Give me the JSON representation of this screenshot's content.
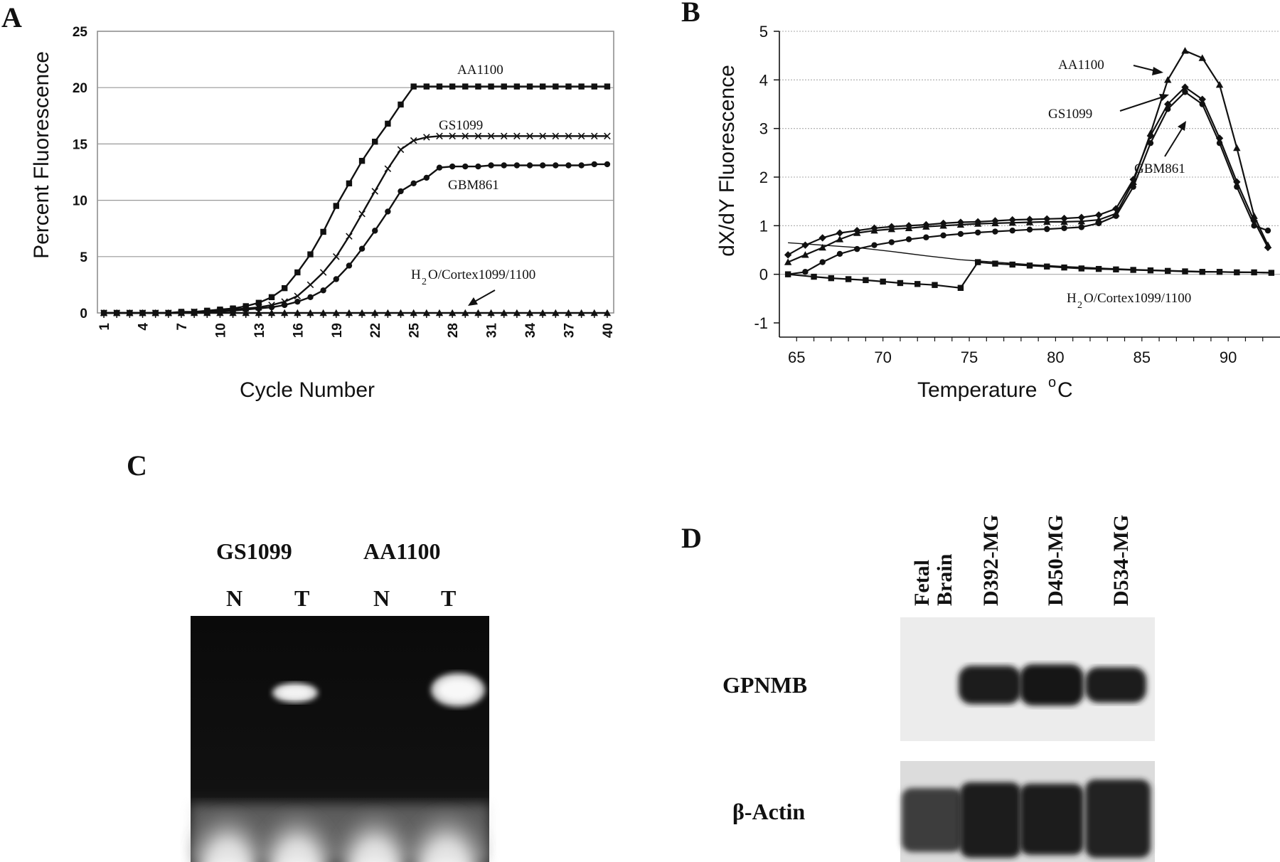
{
  "panels": {
    "A": "A",
    "B": "B",
    "C": "C",
    "D": "D"
  },
  "chart_data": [
    {
      "panel": "A",
      "type": "line",
      "xlabel": "Cycle Number",
      "ylabel": "Percent Fluorescence",
      "x": [
        1,
        2,
        3,
        4,
        5,
        6,
        7,
        8,
        9,
        10,
        11,
        12,
        13,
        14,
        15,
        16,
        17,
        18,
        19,
        20,
        21,
        22,
        23,
        24,
        25,
        26,
        27,
        28,
        29,
        30,
        31,
        32,
        33,
        34,
        35,
        36,
        37,
        38,
        39,
        40
      ],
      "xticks": [
        1,
        4,
        7,
        10,
        13,
        16,
        19,
        22,
        25,
        28,
        31,
        34,
        37,
        40
      ],
      "ylim": [
        0,
        25
      ],
      "yticks": [
        0,
        5,
        10,
        15,
        20,
        25
      ],
      "grid": true,
      "series": [
        {
          "name": "AA1100",
          "marker": "square",
          "values": [
            0,
            0,
            0,
            0,
            0,
            0,
            0.1,
            0.1,
            0.2,
            0.3,
            0.4,
            0.6,
            0.9,
            1.4,
            2.2,
            3.6,
            5.2,
            7.2,
            9.5,
            11.5,
            13.5,
            15.2,
            16.8,
            18.5,
            20.1,
            20.1,
            20.1,
            20.1,
            20.1,
            20.1,
            20.1,
            20.1,
            20.1,
            20.1,
            20.1,
            20.1,
            20.1,
            20.1,
            20.1,
            20.1
          ]
        },
        {
          "name": "GS1099",
          "marker": "cross",
          "values": [
            0,
            0,
            0,
            0,
            0,
            0,
            0,
            0.1,
            0.1,
            0.2,
            0.3,
            0.4,
            0.5,
            0.7,
            1.0,
            1.5,
            2.5,
            3.6,
            5.0,
            6.8,
            8.8,
            10.8,
            12.8,
            14.5,
            15.3,
            15.6,
            15.7,
            15.7,
            15.7,
            15.7,
            15.7,
            15.7,
            15.7,
            15.7,
            15.7,
            15.7,
            15.7,
            15.7,
            15.7,
            15.7
          ]
        },
        {
          "name": "GBM861",
          "marker": "circle",
          "values": [
            0,
            0,
            0,
            0,
            0,
            0,
            0,
            0,
            0.1,
            0.1,
            0.2,
            0.3,
            0.4,
            0.5,
            0.7,
            1.0,
            1.4,
            2.0,
            3.0,
            4.2,
            5.7,
            7.3,
            9.0,
            10.8,
            11.5,
            12.0,
            12.9,
            13.0,
            13.0,
            13.0,
            13.1,
            13.1,
            13.1,
            13.1,
            13.1,
            13.1,
            13.1,
            13.1,
            13.2,
            13.2
          ]
        },
        {
          "name": "H2O/Cortex1099/1100",
          "marker": "triangle",
          "values": [
            0,
            0,
            0,
            0,
            0,
            0,
            0,
            0,
            0,
            0,
            0,
            0,
            0,
            0,
            0,
            0,
            0,
            0,
            0,
            0,
            0,
            0,
            0,
            0,
            0,
            0,
            0,
            0,
            0,
            0,
            0,
            0,
            0,
            0,
            0,
            0,
            0,
            0,
            0,
            0
          ]
        }
      ],
      "annotations": [
        "AA1100",
        "GS1099",
        "GBM861",
        "H2O/Cortex1099/1100"
      ]
    },
    {
      "panel": "B",
      "type": "line",
      "xlabel": "Temperature °C",
      "ylabel": "dX/dY Fluorescence",
      "xlim": [
        64,
        93
      ],
      "xticks": [
        65,
        70,
        75,
        80,
        85,
        90
      ],
      "ylim": [
        -1,
        5
      ],
      "yticks": [
        -1,
        0,
        1,
        2,
        3,
        4,
        5
      ],
      "grid": true,
      "series": [
        {
          "name": "AA1100",
          "marker": "triangle",
          "points": [
            [
              64.5,
              0.25
            ],
            [
              65.5,
              0.4
            ],
            [
              66.5,
              0.55
            ],
            [
              67.5,
              0.72
            ],
            [
              68.5,
              0.85
            ],
            [
              69.5,
              0.9
            ],
            [
              70.5,
              0.93
            ],
            [
              71.5,
              0.95
            ],
            [
              72.5,
              0.98
            ],
            [
              73.5,
              1.0
            ],
            [
              74.5,
              1.02
            ],
            [
              75.5,
              1.04
            ],
            [
              76.5,
              1.05
            ],
            [
              77.5,
              1.06
            ],
            [
              78.5,
              1.07
            ],
            [
              79.5,
              1.08
            ],
            [
              80.5,
              1.08
            ],
            [
              81.5,
              1.09
            ],
            [
              82.5,
              1.12
            ],
            [
              83.5,
              1.25
            ],
            [
              84.5,
              1.9
            ],
            [
              85.5,
              2.9
            ],
            [
              86.5,
              4.0
            ],
            [
              87.5,
              4.6
            ],
            [
              88.5,
              4.45
            ],
            [
              89.5,
              3.9
            ],
            [
              90.5,
              2.6
            ],
            [
              91.5,
              1.2
            ],
            [
              92.3,
              0.6
            ]
          ]
        },
        {
          "name": "GS1099",
          "marker": "diamond",
          "points": [
            [
              64.5,
              0.4
            ],
            [
              65.5,
              0.6
            ],
            [
              66.5,
              0.75
            ],
            [
              67.5,
              0.85
            ],
            [
              68.5,
              0.9
            ],
            [
              69.5,
              0.95
            ],
            [
              70.5,
              0.98
            ],
            [
              71.5,
              1.0
            ],
            [
              72.5,
              1.02
            ],
            [
              73.5,
              1.05
            ],
            [
              74.5,
              1.07
            ],
            [
              75.5,
              1.08
            ],
            [
              76.5,
              1.1
            ],
            [
              77.5,
              1.12
            ],
            [
              78.5,
              1.13
            ],
            [
              79.5,
              1.14
            ],
            [
              80.5,
              1.15
            ],
            [
              81.5,
              1.17
            ],
            [
              82.5,
              1.22
            ],
            [
              83.5,
              1.35
            ],
            [
              84.5,
              1.95
            ],
            [
              85.5,
              2.85
            ],
            [
              86.5,
              3.5
            ],
            [
              87.5,
              3.85
            ],
            [
              88.5,
              3.6
            ],
            [
              89.5,
              2.8
            ],
            [
              90.5,
              1.9
            ],
            [
              91.5,
              1.1
            ],
            [
              92.3,
              0.55
            ]
          ]
        },
        {
          "name": "GBM861",
          "marker": "circle",
          "points": [
            [
              64.5,
              0.0
            ],
            [
              65.5,
              0.05
            ],
            [
              66.5,
              0.25
            ],
            [
              67.5,
              0.42
            ],
            [
              68.5,
              0.52
            ],
            [
              69.5,
              0.6
            ],
            [
              70.5,
              0.66
            ],
            [
              71.5,
              0.72
            ],
            [
              72.5,
              0.76
            ],
            [
              73.5,
              0.8
            ],
            [
              74.5,
              0.83
            ],
            [
              75.5,
              0.86
            ],
            [
              76.5,
              0.88
            ],
            [
              77.5,
              0.9
            ],
            [
              78.5,
              0.92
            ],
            [
              79.5,
              0.93
            ],
            [
              80.5,
              0.95
            ],
            [
              81.5,
              0.97
            ],
            [
              82.5,
              1.05
            ],
            [
              83.5,
              1.2
            ],
            [
              84.5,
              1.8
            ],
            [
              85.5,
              2.7
            ],
            [
              86.5,
              3.4
            ],
            [
              87.5,
              3.75
            ],
            [
              88.5,
              3.5
            ],
            [
              89.5,
              2.7
            ],
            [
              90.5,
              1.8
            ],
            [
              91.5,
              1.0
            ],
            [
              92.3,
              0.9
            ]
          ]
        },
        {
          "name": "H2O/Cortex1099/1100",
          "marker": "square",
          "points": [
            [
              64.5,
              0.0
            ],
            [
              66,
              -0.05
            ],
            [
              67,
              -0.08
            ],
            [
              68,
              -0.1
            ],
            [
              69,
              -0.12
            ],
            [
              70,
              -0.15
            ],
            [
              71,
              -0.18
            ],
            [
              72,
              -0.2
            ],
            [
              73,
              -0.22
            ],
            [
              74.5,
              -0.28
            ],
            [
              75.5,
              0.25
            ],
            [
              76.5,
              0.22
            ],
            [
              77.5,
              0.2
            ],
            [
              78.5,
              0.18
            ],
            [
              79.5,
              0.16
            ],
            [
              80.5,
              0.14
            ],
            [
              81.5,
              0.12
            ],
            [
              82.5,
              0.11
            ],
            [
              83.5,
              0.1
            ],
            [
              84.5,
              0.09
            ],
            [
              85.5,
              0.08
            ],
            [
              86.5,
              0.07
            ],
            [
              87.5,
              0.06
            ],
            [
              88.5,
              0.05
            ],
            [
              89.5,
              0.05
            ],
            [
              90.5,
              0.04
            ],
            [
              91.5,
              0.04
            ],
            [
              92.5,
              0.03
            ]
          ]
        },
        {
          "name": "H2O/Cortex1099/1100 (b)",
          "marker": "none",
          "points": [
            [
              64.5,
              0.65
            ],
            [
              66.5,
              0.6
            ],
            [
              68.5,
              0.55
            ],
            [
              70.5,
              0.47
            ],
            [
              72.5,
              0.38
            ],
            [
              74.5,
              0.3
            ],
            [
              76.5,
              0.25
            ],
            [
              78.5,
              0.2
            ],
            [
              80.5,
              0.16
            ],
            [
              82.5,
              0.13
            ],
            [
              84.5,
              0.1
            ],
            [
              86.5,
              0.08
            ],
            [
              88.5,
              0.06
            ],
            [
              90.5,
              0.05
            ],
            [
              92.5,
              0.04
            ]
          ]
        }
      ],
      "annotations": [
        "AA1100",
        "GS1099",
        "GBM861",
        "H2O/Cortex1099/1100"
      ]
    }
  ],
  "gel": {
    "groups": [
      "GS1099",
      "AA1100"
    ],
    "lanes": [
      "N",
      "T",
      "N",
      "T"
    ]
  },
  "blot": {
    "lanes": [
      "Fetal Brain",
      "D392-MG",
      "D450-MG",
      "D534-MG"
    ],
    "lane_lines": [
      [
        "Fetal",
        "Brain"
      ],
      [
        "D392-MG"
      ],
      [
        "D450-MG"
      ],
      [
        "D534-MG"
      ]
    ],
    "rows": [
      "GPNMB",
      "β-Actin"
    ]
  }
}
